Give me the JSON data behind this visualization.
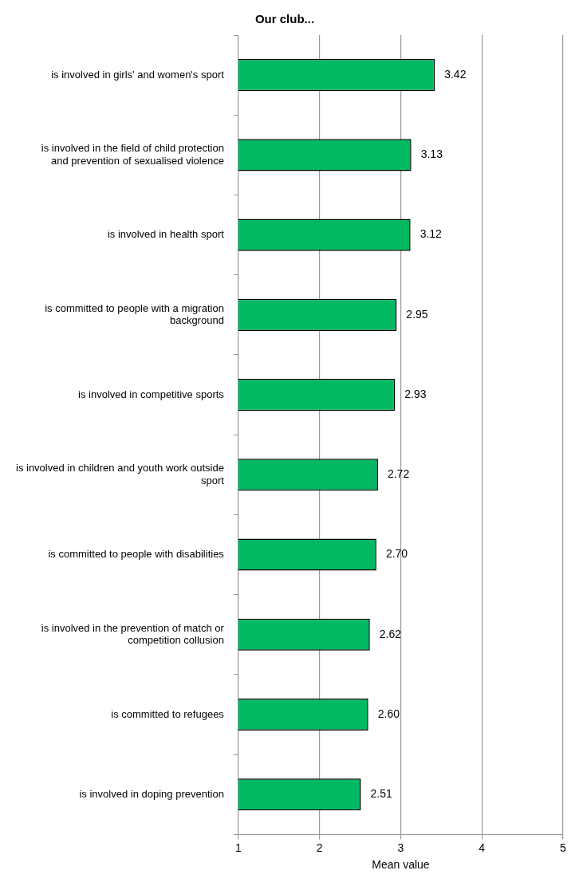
{
  "chart_data": {
    "type": "bar",
    "orientation": "horizontal",
    "title": "Our club...",
    "xlabel": "Mean value",
    "categories": [
      "is involved in girls' and women's sport",
      "is involved in the field of child protection and prevention of sexualised violence",
      "is involved in health sport",
      "is committed to people with a migration background",
      "is involved in competitive sports",
      "is involved in children and youth work outside sport",
      "is committed to people with disabilities",
      "is involved in the prevention of match or competition collusion",
      "is committed to refugees",
      "is involved in doping prevention"
    ],
    "values": [
      3.42,
      3.13,
      3.12,
      2.95,
      2.93,
      2.72,
      2.7,
      2.62,
      2.6,
      2.51
    ],
    "value_labels": [
      "3.42",
      "3.13",
      "3.12",
      "2.95",
      "2.93",
      "2.72",
      "2.70",
      "2.62",
      "2.60",
      "2.51"
    ],
    "color": "#00b961",
    "xlim": [
      1,
      5
    ],
    "xticks": [
      1,
      2,
      3,
      4,
      5
    ],
    "grid": "x",
    "legend": false
  }
}
